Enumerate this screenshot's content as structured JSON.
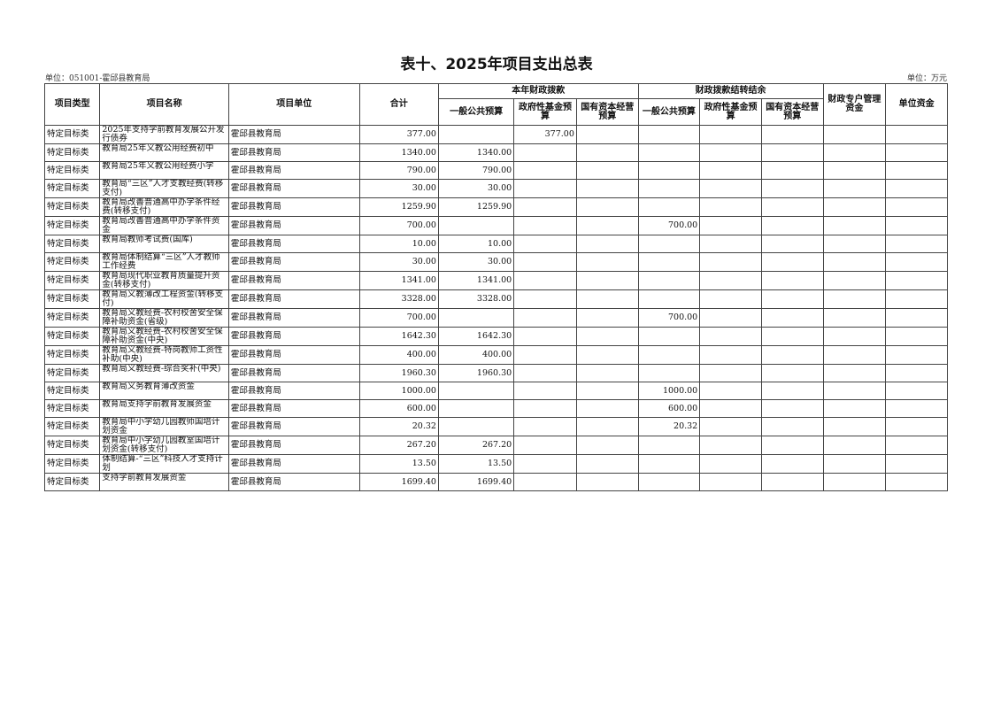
{
  "title": "表十、2025年项目支出总表",
  "unit_left": "单位：051001-霍邱县教育局",
  "unit_right": "单位：万元",
  "headers": {
    "type": "项目类型",
    "name": "项目名称",
    "unit": "项目单位",
    "total": "合计",
    "group_current": "本年财政拨款",
    "group_carry": "财政拨款结转结余",
    "general": "一般公共预算",
    "fund": "政府性基金预算",
    "state": "国有资本经营预算",
    "special": "财政专户管理资金",
    "own": "单位资金"
  },
  "rows": [
    [
      "特定目标类",
      "2025年支持学前教育发展公开发行债券",
      "霍邱县教育局",
      "377.00",
      "",
      "377.00",
      "",
      "",
      "",
      "",
      "",
      ""
    ],
    [
      "特定目标类",
      "教育局25年义教公用经费初中",
      "霍邱县教育局",
      "1340.00",
      "1340.00",
      "",
      "",
      "",
      "",
      "",
      "",
      ""
    ],
    [
      "特定目标类",
      "教育局25年义教公用经费小学",
      "霍邱县教育局",
      "790.00",
      "790.00",
      "",
      "",
      "",
      "",
      "",
      "",
      ""
    ],
    [
      "特定目标类",
      "教育局“三区”人才支教经费(转移支付)",
      "霍邱县教育局",
      "30.00",
      "30.00",
      "",
      "",
      "",
      "",
      "",
      "",
      ""
    ],
    [
      "特定目标类",
      "教育局改善普通高中办学条件经费(转移支付)",
      "霍邱县教育局",
      "1259.90",
      "1259.90",
      "",
      "",
      "",
      "",
      "",
      "",
      ""
    ],
    [
      "特定目标类",
      "教育局改善普通高中办学条件资金",
      "霍邱县教育局",
      "700.00",
      "",
      "",
      "",
      "700.00",
      "",
      "",
      "",
      ""
    ],
    [
      "特定目标类",
      "教育局教师考试费(国库)",
      "霍邱县教育局",
      "10.00",
      "10.00",
      "",
      "",
      "",
      "",
      "",
      "",
      ""
    ],
    [
      "特定目标类",
      "教育局体制结算“三区”人才教师工作经费",
      "霍邱县教育局",
      "30.00",
      "30.00",
      "",
      "",
      "",
      "",
      "",
      "",
      ""
    ],
    [
      "特定目标类",
      "教育局现代职业教育质量提升资金(转移支付)",
      "霍邱县教育局",
      "1341.00",
      "1341.00",
      "",
      "",
      "",
      "",
      "",
      "",
      ""
    ],
    [
      "特定目标类",
      "教育局义教薄改工程资金(转移支付)",
      "霍邱县教育局",
      "3328.00",
      "3328.00",
      "",
      "",
      "",
      "",
      "",
      "",
      ""
    ],
    [
      "特定目标类",
      "教育局义教经费-农村校舍安全保障补助资金(省级)",
      "霍邱县教育局",
      "700.00",
      "",
      "",
      "",
      "700.00",
      "",
      "",
      "",
      ""
    ],
    [
      "特定目标类",
      "教育局义教经费-农村校舍安全保障补助资金(中央)",
      "霍邱县教育局",
      "1642.30",
      "1642.30",
      "",
      "",
      "",
      "",
      "",
      "",
      ""
    ],
    [
      "特定目标类",
      "教育局义教经费-特岗教师工资性补助(中央)",
      "霍邱县教育局",
      "400.00",
      "400.00",
      "",
      "",
      "",
      "",
      "",
      "",
      ""
    ],
    [
      "特定目标类",
      "教育局义教经费-综合奖补(中央)",
      "霍邱县教育局",
      "1960.30",
      "1960.30",
      "",
      "",
      "",
      "",
      "",
      "",
      ""
    ],
    [
      "特定目标类",
      "教育局义务教育薄改资金",
      "霍邱县教育局",
      "1000.00",
      "",
      "",
      "",
      "1000.00",
      "",
      "",
      "",
      ""
    ],
    [
      "特定目标类",
      "教育局支持学前教育发展资金",
      "霍邱县教育局",
      "600.00",
      "",
      "",
      "",
      "600.00",
      "",
      "",
      "",
      ""
    ],
    [
      "特定目标类",
      "教育局中小学幼儿园教师国培计划资金",
      "霍邱县教育局",
      "20.32",
      "",
      "",
      "",
      "20.32",
      "",
      "",
      "",
      ""
    ],
    [
      "特定目标类",
      "教育局中小学幼儿园教室国培计划资金(转移支付)",
      "霍邱县教育局",
      "267.20",
      "267.20",
      "",
      "",
      "",
      "",
      "",
      "",
      ""
    ],
    [
      "特定目标类",
      "体制结算-“三区”科技人才支持计划",
      "霍邱县教育局",
      "13.50",
      "13.50",
      "",
      "",
      "",
      "",
      "",
      "",
      ""
    ],
    [
      "特定目标类",
      "支持学前教育发展资金",
      "霍邱县教育局",
      "1699.40",
      "1699.40",
      "",
      "",
      "",
      "",
      "",
      "",
      ""
    ]
  ]
}
